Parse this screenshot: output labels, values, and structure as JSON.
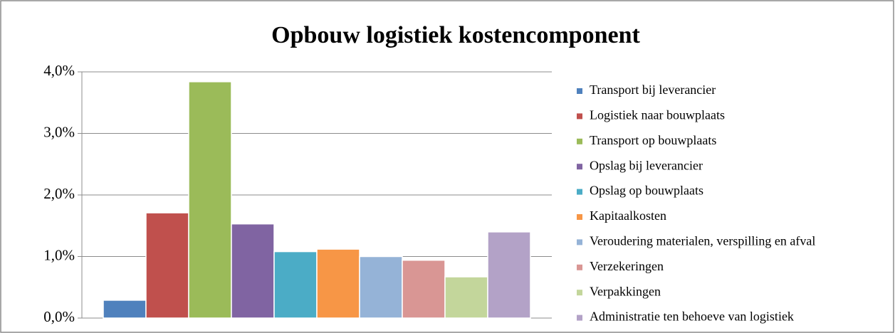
{
  "chart_data": {
    "type": "bar",
    "title": "Opbouw logistiek kostencomponent",
    "series": [
      {
        "name": "Transport bij leverancier",
        "color": "#4f81bd",
        "values": [
          0.29
        ]
      },
      {
        "name": "Logistiek naar bouwplaats",
        "color": "#c0504d",
        "values": [
          1.71
        ]
      },
      {
        "name": "Transport op bouwplaats",
        "color": "#9bbb59",
        "values": [
          3.84
        ]
      },
      {
        "name": "Opslag bij leverancier",
        "color": "#8064a2",
        "values": [
          1.53
        ]
      },
      {
        "name": "Opslag op bouwplaats",
        "color": "#4bacc6",
        "values": [
          1.08
        ]
      },
      {
        "name": "Kapitaalkosten",
        "color": "#f79646",
        "values": [
          1.12
        ]
      },
      {
        "name": "Veroudering materialen, verspilling en afval",
        "color": "#95b3d7",
        "values": [
          1.0
        ]
      },
      {
        "name": "Verzekeringen",
        "color": "#d99694",
        "values": [
          0.94
        ]
      },
      {
        "name": "Verpakkingen",
        "color": "#c3d69b",
        "values": [
          0.67
        ]
      },
      {
        "name": "Administratie ten behoeve van logistiek",
        "color": "#b3a2c7",
        "values": [
          1.4
        ]
      }
    ],
    "ylim": [
      0,
      4
    ],
    "yticks": [
      {
        "value": 0,
        "label": "0,0%"
      },
      {
        "value": 1,
        "label": "1,0%"
      },
      {
        "value": 2,
        "label": "2,0%"
      },
      {
        "value": 3,
        "label": "3,0%"
      },
      {
        "value": 4,
        "label": "4,0%"
      }
    ],
    "grid": true,
    "legend": "right"
  }
}
